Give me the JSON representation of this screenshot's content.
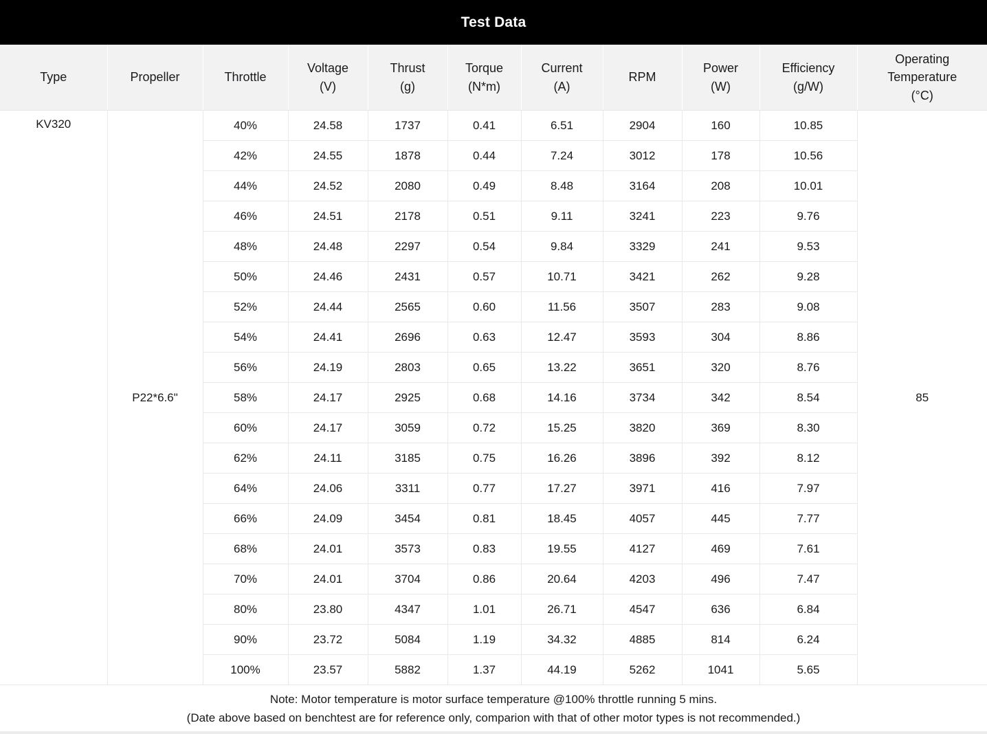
{
  "page": {
    "title": "Test Data",
    "note_line1": "Note: Motor temperature is motor surface temperature @100% throttle running 5 mins.",
    "note_line2": "(Date above based on benchtest are for reference only, comparion with that of other motor types is not recommended.)"
  },
  "colors": {
    "title_bar_bg": "#000000",
    "title_text": "#ffffff",
    "header_bg": "#f2f2f3",
    "cell_border": "#e9e9ea",
    "body_text": "#1a1a1a"
  },
  "chart_data": {
    "type": "table",
    "title": "Test Data",
    "columns": [
      "Type",
      "Propeller",
      "Throttle",
      "Voltage\n(V)",
      "Thrust\n(g)",
      "Torque\n(N*m)",
      "Current\n(A)",
      "RPM",
      "Power\n(W)",
      "Efficiency\n(g/W)",
      "Operating\nTemperature\n(°C)"
    ],
    "type_value": "KV320",
    "propeller_value": "P22*6.6\"",
    "operating_temperature_value": "85",
    "rows": [
      {
        "throttle": "40%",
        "voltage": "24.58",
        "thrust": "1737",
        "torque": "0.41",
        "current": "6.51",
        "rpm": "2904",
        "power": "160",
        "efficiency": "10.85"
      },
      {
        "throttle": "42%",
        "voltage": "24.55",
        "thrust": "1878",
        "torque": "0.44",
        "current": "7.24",
        "rpm": "3012",
        "power": "178",
        "efficiency": "10.56"
      },
      {
        "throttle": "44%",
        "voltage": "24.52",
        "thrust": "2080",
        "torque": "0.49",
        "current": "8.48",
        "rpm": "3164",
        "power": "208",
        "efficiency": "10.01"
      },
      {
        "throttle": "46%",
        "voltage": "24.51",
        "thrust": "2178",
        "torque": "0.51",
        "current": "9.11",
        "rpm": "3241",
        "power": "223",
        "efficiency": "9.76"
      },
      {
        "throttle": "48%",
        "voltage": "24.48",
        "thrust": "2297",
        "torque": "0.54",
        "current": "9.84",
        "rpm": "3329",
        "power": "241",
        "efficiency": "9.53"
      },
      {
        "throttle": "50%",
        "voltage": "24.46",
        "thrust": "2431",
        "torque": "0.57",
        "current": "10.71",
        "rpm": "3421",
        "power": "262",
        "efficiency": "9.28"
      },
      {
        "throttle": "52%",
        "voltage": "24.44",
        "thrust": "2565",
        "torque": "0.60",
        "current": "11.56",
        "rpm": "3507",
        "power": "283",
        "efficiency": "9.08"
      },
      {
        "throttle": "54%",
        "voltage": "24.41",
        "thrust": "2696",
        "torque": "0.63",
        "current": "12.47",
        "rpm": "3593",
        "power": "304",
        "efficiency": "8.86"
      },
      {
        "throttle": "56%",
        "voltage": "24.19",
        "thrust": "2803",
        "torque": "0.65",
        "current": "13.22",
        "rpm": "3651",
        "power": "320",
        "efficiency": "8.76"
      },
      {
        "throttle": "58%",
        "voltage": "24.17",
        "thrust": "2925",
        "torque": "0.68",
        "current": "14.16",
        "rpm": "3734",
        "power": "342",
        "efficiency": "8.54"
      },
      {
        "throttle": "60%",
        "voltage": "24.17",
        "thrust": "3059",
        "torque": "0.72",
        "current": "15.25",
        "rpm": "3820",
        "power": "369",
        "efficiency": "8.30"
      },
      {
        "throttle": "62%",
        "voltage": "24.11",
        "thrust": "3185",
        "torque": "0.75",
        "current": "16.26",
        "rpm": "3896",
        "power": "392",
        "efficiency": "8.12"
      },
      {
        "throttle": "64%",
        "voltage": "24.06",
        "thrust": "3311",
        "torque": "0.77",
        "current": "17.27",
        "rpm": "3971",
        "power": "416",
        "efficiency": "7.97"
      },
      {
        "throttle": "66%",
        "voltage": "24.09",
        "thrust": "3454",
        "torque": "0.81",
        "current": "18.45",
        "rpm": "4057",
        "power": "445",
        "efficiency": "7.77"
      },
      {
        "throttle": "68%",
        "voltage": "24.01",
        "thrust": "3573",
        "torque": "0.83",
        "current": "19.55",
        "rpm": "4127",
        "power": "469",
        "efficiency": "7.61"
      },
      {
        "throttle": "70%",
        "voltage": "24.01",
        "thrust": "3704",
        "torque": "0.86",
        "current": "20.64",
        "rpm": "4203",
        "power": "496",
        "efficiency": "7.47"
      },
      {
        "throttle": "80%",
        "voltage": "23.80",
        "thrust": "4347",
        "torque": "1.01",
        "current": "26.71",
        "rpm": "4547",
        "power": "636",
        "efficiency": "6.84"
      },
      {
        "throttle": "90%",
        "voltage": "23.72",
        "thrust": "5084",
        "torque": "1.19",
        "current": "34.32",
        "rpm": "4885",
        "power": "814",
        "efficiency": "6.24"
      },
      {
        "throttle": "100%",
        "voltage": "23.57",
        "thrust": "5882",
        "torque": "1.37",
        "current": "44.19",
        "rpm": "5262",
        "power": "1041",
        "efficiency": "5.65"
      }
    ]
  }
}
